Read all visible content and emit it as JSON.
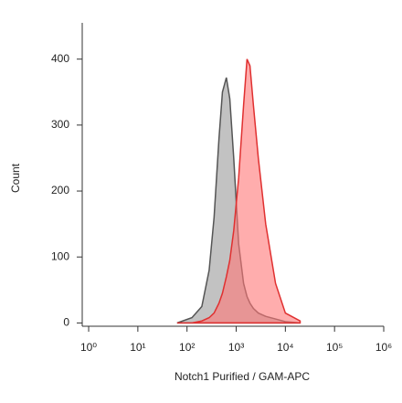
{
  "chart_data": {
    "type": "area",
    "x_label": "Notch1 Purified / GAM-APC",
    "y_label": "Count",
    "x": [
      63,
      126,
      200,
      282,
      355,
      447,
      525,
      631,
      741,
      891,
      1122,
      1413,
      1660,
      1905,
      2239,
      2818,
      3981,
      6310,
      10000,
      19953
    ],
    "series": [
      {
        "color": "#999999",
        "stroke": "#555555",
        "values": [
          0,
          8,
          25,
          80,
          160,
          280,
          350,
          372,
          340,
          250,
          120,
          60,
          40,
          30,
          22,
          15,
          10,
          6,
          2,
          0
        ]
      },
      {
        "color": "#ff7777",
        "stroke": "#e03030",
        "values": [
          0,
          0,
          3,
          8,
          15,
          30,
          45,
          70,
          95,
          140,
          220,
          330,
          400,
          390,
          330,
          250,
          150,
          60,
          15,
          3
        ]
      }
    ],
    "xscale": "log",
    "xlim": [
      0.74,
      1000000
    ],
    "xticks": [
      {
        "value": 1,
        "label": "10⁰"
      },
      {
        "value": 10,
        "label": "10¹"
      },
      {
        "value": 100,
        "label": "10²"
      },
      {
        "value": 1000,
        "label": "10³"
      },
      {
        "value": 10000,
        "label": "10⁴"
      },
      {
        "value": 100000,
        "label": "10⁵"
      },
      {
        "value": 1000000,
        "label": "10⁶"
      }
    ],
    "ylim": [
      -5,
      455
    ],
    "yticks": [
      0,
      100,
      200,
      300,
      400
    ]
  }
}
